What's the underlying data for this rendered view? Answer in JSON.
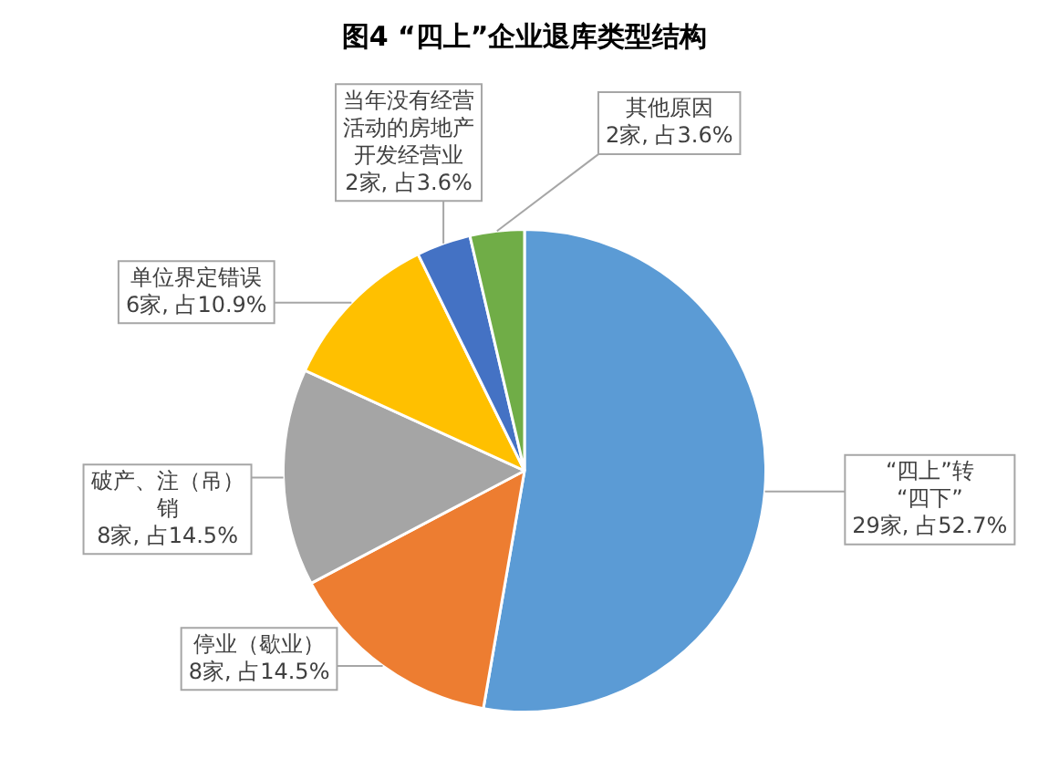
{
  "chart_data": {
    "type": "pie",
    "title": "图4 “四上”企业退库类型结构",
    "categories": [
      "“四上”转“四下”",
      "停业（歇业）",
      "破产、注（吊）销",
      "单位界定错误",
      "当年没有经营活动的房地产开发经营业",
      "其他原因"
    ],
    "values": [
      29,
      8,
      8,
      6,
      2,
      2
    ],
    "colors": [
      "#5b9bd5",
      "#ed7d31",
      "#a5a5a5",
      "#ffc000",
      "#4472c4",
      "#70ad47"
    ],
    "value_labels": [
      "29家, 占52.7%",
      "8家, 占14.5%",
      "8家, 占14.5%",
      "6家, 占10.9%",
      "2家, 占3.6%",
      "2家, 占3.6%"
    ],
    "legend": false
  }
}
